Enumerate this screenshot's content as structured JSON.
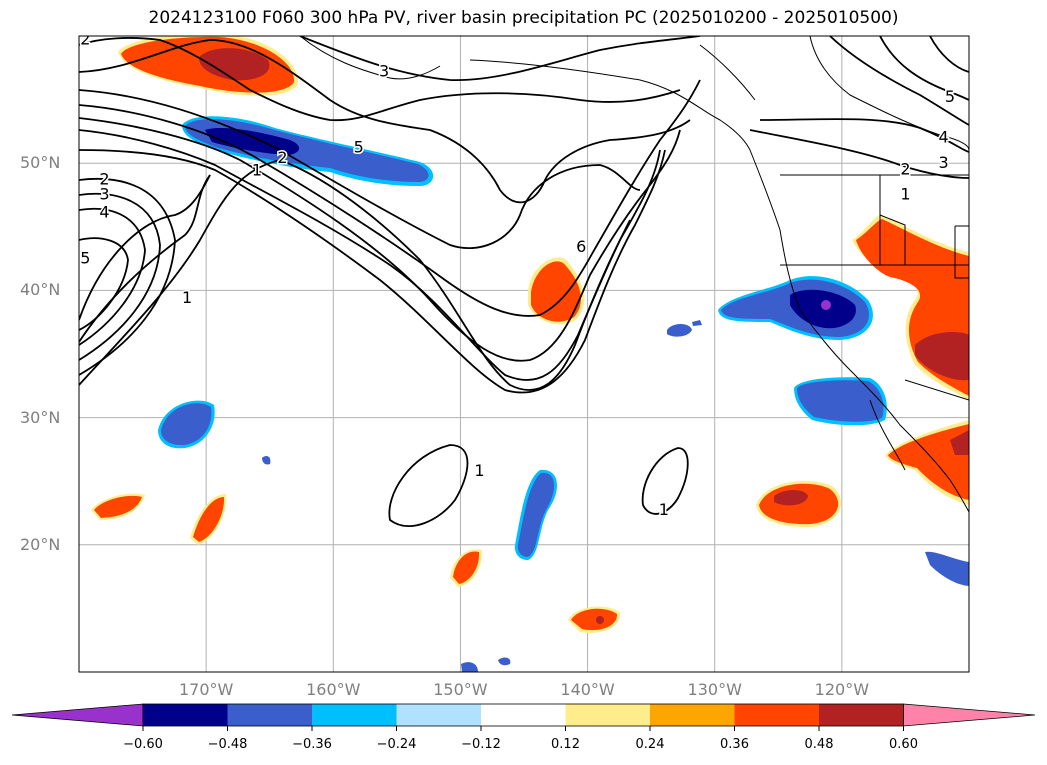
{
  "title": "2024123100 F060 300 hPa PV, river basin precipitation PC (2025010200 - 2025010500)",
  "map": {
    "lat_labels": [
      {
        "text": "50°N",
        "lat": 50
      },
      {
        "text": "40°N",
        "lat": 40
      },
      {
        "text": "30°N",
        "lat": 30
      },
      {
        "text": "20°N",
        "lat": 20
      }
    ],
    "lon_labels": [
      {
        "text": "170°W",
        "lon": -170
      },
      {
        "text": "160°W",
        "lon": -160
      },
      {
        "text": "150°W",
        "lon": -150
      },
      {
        "text": "140°W",
        "lon": -140
      },
      {
        "text": "130°W",
        "lon": -130
      },
      {
        "text": "120°W",
        "lon": -120
      }
    ],
    "extent": {
      "lon_min": -180,
      "lon_max": -110,
      "lat_min": 10,
      "lat_max": 60
    },
    "grid": true,
    "pv_contour_labels": [
      {
        "text": "1",
        "lon": -166,
        "lat": 49.5
      },
      {
        "text": "2",
        "lon": -164,
        "lat": 50.5
      },
      {
        "text": "5",
        "lon": -158,
        "lat": 51.3
      },
      {
        "text": "3",
        "lon": -156,
        "lat": 57.3
      },
      {
        "text": "2",
        "lon": -179.5,
        "lat": 59.8
      },
      {
        "text": "2",
        "lon": -178,
        "lat": 48.8
      },
      {
        "text": "3",
        "lon": -178,
        "lat": 47.6
      },
      {
        "text": "4",
        "lon": -178,
        "lat": 46.2
      },
      {
        "text": "5",
        "lon": -179.5,
        "lat": 42.6
      },
      {
        "text": "1",
        "lon": -171.5,
        "lat": 39.5
      },
      {
        "text": "6",
        "lon": -140.5,
        "lat": 43.5
      },
      {
        "text": "1",
        "lon": -148.5,
        "lat": 25.9
      },
      {
        "text": "1",
        "lon": -134,
        "lat": 22.8
      },
      {
        "text": "5",
        "lon": -111.5,
        "lat": 55.3
      },
      {
        "text": "4",
        "lon": -112,
        "lat": 52.1
      },
      {
        "text": "3",
        "lon": -112,
        "lat": 50.1
      },
      {
        "text": "2",
        "lon": -115,
        "lat": 49.6
      },
      {
        "text": "1",
        "lon": -115,
        "lat": 47.6
      }
    ]
  },
  "colorbar": {
    "colors": [
      "#9932cc",
      "#00008b",
      "#3a5fcd",
      "#00bfff",
      "#b0e2ff",
      "#ffffff",
      "#ffec8b",
      "#ffa500",
      "#ff4500",
      "#b22222",
      "#ff82ab"
    ],
    "ticks": [
      "−0.60",
      "−0.48",
      "−0.36",
      "−0.24",
      "−0.12",
      "0.12",
      "0.24",
      "0.36",
      "0.48",
      "0.60"
    ]
  }
}
